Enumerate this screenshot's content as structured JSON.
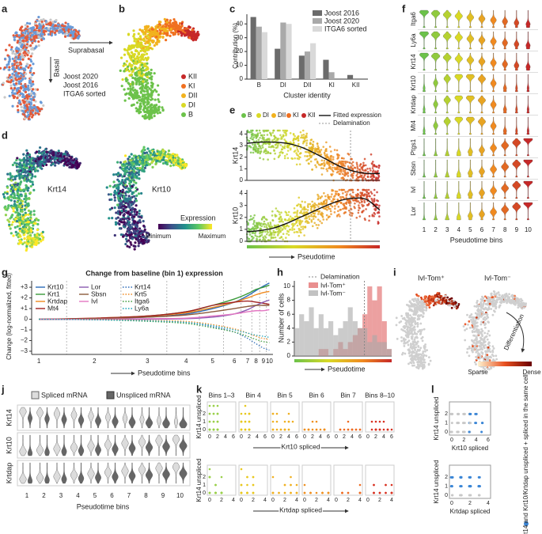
{
  "figure": {
    "panel_letters": [
      "a",
      "b",
      "c",
      "d",
      "e",
      "f",
      "g",
      "h",
      "i",
      "j",
      "k",
      "l"
    ],
    "panel_a": {
      "arrow_labels": [
        "Suprabasal",
        "Basal"
      ],
      "legend": [
        {
          "name": "Joost 2020",
          "color": "#6a9bd8"
        },
        {
          "name": "Joost 2016",
          "color": "#e35b3a"
        },
        {
          "name": "ITGA6 sorted",
          "color": "#c8c8c8"
        }
      ]
    },
    "panel_b": {
      "legend": [
        {
          "name": "KII",
          "color": "#c62828"
        },
        {
          "name": "KI",
          "color": "#f07020"
        },
        {
          "name": "DII",
          "color": "#f2b21e"
        },
        {
          "name": "DI",
          "color": "#d9d925"
        },
        {
          "name": "B",
          "color": "#6cc24a"
        }
      ]
    },
    "panel_d": {
      "labels": [
        "Krt14",
        "Krt10"
      ],
      "colorbar_title": "Expression",
      "colorbar_ends": [
        "Minimum",
        "Maximum"
      ]
    },
    "panel_e": {
      "legend": [
        {
          "name": "B",
          "color": "#6cc24a"
        },
        {
          "name": "DI",
          "color": "#d9d925"
        },
        {
          "name": "DII",
          "color": "#f2b21e"
        },
        {
          "name": "KI",
          "color": "#f07020"
        },
        {
          "name": "KII",
          "color": "#c62828"
        }
      ],
      "fit_label": "Fitted expression",
      "delamination_label": "Delamination",
      "xlabel": "Pseudotime"
    },
    "panel_f": {
      "genes": [
        "Itga6",
        "Ly6a",
        "Krt14",
        "Krt10",
        "Krtdap",
        "Mt4",
        "Ptgs1",
        "Sbsn",
        "Ivl",
        "Lor"
      ],
      "bins": [
        1,
        2,
        3,
        4,
        5,
        6,
        7,
        8,
        9,
        10
      ],
      "xlabel": "Pseudotime bins"
    },
    "panel_i": {
      "titles": [
        "Ivl-Tom⁺",
        "Ivl-Tom⁻"
      ],
      "arrow_label": "Differentiation",
      "colorbar_ends": [
        "Sparse",
        "Dense"
      ]
    },
    "panel_j": {
      "legend": [
        "Spliced mRNA",
        "Unspliced mRNA"
      ],
      "genes": [
        "Krt14",
        "Krt10",
        "Krtdap"
      ],
      "bins": [
        1,
        2,
        3,
        4,
        5,
        6,
        7,
        8,
        9,
        10
      ],
      "xlabel": "Pseudotime bins"
    },
    "panel_k": {
      "headers": [
        "Bins 1–3",
        "Bin 4",
        "Bin 5",
        "Bin 6",
        "Bin 7",
        "Bins 8–10"
      ],
      "ylabels": [
        "Krt14 unspliced",
        "Krt14 unspliced"
      ],
      "xlabels": [
        "Krt10 spliced",
        "Krtdap spliced"
      ],
      "yticks": [
        0,
        1,
        2
      ],
      "xticks_top": [
        0,
        2,
        4,
        6
      ],
      "xticks_bottom": [
        0,
        2,
        4
      ]
    },
    "panel_l": {
      "ylabels": [
        "Krt14 unspliced",
        "Krt14 unspliced"
      ],
      "xlabels": [
        "Krt10 spliced",
        "Krtdap spliced"
      ],
      "yticks": [
        0,
        1,
        2
      ],
      "xticks_top": [
        0,
        2,
        4,
        6
      ],
      "xticks_bottom": [
        0,
        2,
        4
      ],
      "note": "Krt14 and Krt10/Krtdap unspliced + spliced in the same cell"
    }
  },
  "chart_data": [
    {
      "type": "bar",
      "barmode": "grouped",
      "ylabel": "Contribution (%)",
      "xlabel": "Cluster identity",
      "categories": [
        "B",
        "DI",
        "DII",
        "KI",
        "KII"
      ],
      "series": [
        {
          "name": "Joost 2016",
          "color": "#6b6b6b",
          "values": [
            45,
            22,
            17,
            14,
            3
          ]
        },
        {
          "name": "Joost 2020",
          "color": "#a9a9a9",
          "values": [
            38,
            41,
            20,
            5,
            0
          ]
        },
        {
          "name": "ITGA6 sorted",
          "color": "#d9d9d9",
          "values": [
            34,
            40,
            26,
            0,
            0
          ]
        }
      ],
      "ylim": [
        0,
        47
      ],
      "yticks": [
        0,
        10,
        20,
        30,
        40
      ]
    },
    {
      "type": "line",
      "ylabel": "Krt14",
      "categories": [
        null,
        null,
        null,
        null,
        null,
        null,
        null,
        null,
        null,
        null,
        null
      ],
      "values": [
        3.2,
        3.3,
        3.3,
        3.2,
        2.9,
        2.4,
        1.8,
        1.2,
        0.8,
        0.6,
        0.6
      ],
      "color": "#111111",
      "ylim": [
        0,
        4.3
      ],
      "yticks": [
        0,
        1,
        2,
        3,
        4
      ]
    },
    {
      "type": "line",
      "ylabel": "Krt10",
      "categories": [
        null,
        null,
        null,
        null,
        null,
        null,
        null,
        null,
        null,
        null,
        null
      ],
      "values": [
        0.8,
        0.9,
        1.1,
        1.5,
        2.0,
        2.5,
        3.0,
        3.4,
        3.6,
        3.5,
        2.6
      ],
      "color": "#111111",
      "ylim": [
        0,
        4.3
      ],
      "yticks": [
        0,
        1,
        2,
        3,
        4
      ]
    },
    {
      "type": "line",
      "title": "Change from baseline (bin 1) expression",
      "ylabel": "Change (log-normalized, fitted)",
      "xlabel": "Pseudotime bins",
      "categories": [
        "1",
        "2",
        "3",
        "4",
        "5",
        "6",
        "7",
        "8",
        "9",
        "10"
      ],
      "series": [
        {
          "name": "Krt10",
          "color": "#2b6cb8",
          "style": "solid",
          "values": [
            0,
            0.05,
            0.2,
            0.5,
            1.0,
            1.6,
            2.2,
            2.7,
            3.1,
            3.4
          ]
        },
        {
          "name": "Krt1",
          "color": "#3a9a3a",
          "style": "solid",
          "values": [
            0,
            0.05,
            0.3,
            0.7,
            1.3,
            1.9,
            2.4,
            2.8,
            3.0,
            3.2
          ]
        },
        {
          "name": "Krtdap",
          "color": "#f08a20",
          "style": "solid",
          "values": [
            0,
            0.1,
            0.3,
            0.6,
            1.1,
            1.6,
            2.0,
            2.3,
            2.5,
            2.6
          ]
        },
        {
          "name": "Mt4",
          "color": "#a02020",
          "style": "solid",
          "values": [
            0,
            0.1,
            0.3,
            0.7,
            1.3,
            1.6,
            1.7,
            1.6,
            1.5,
            1.4
          ]
        },
        {
          "name": "Lor",
          "color": "#8a5bb0",
          "style": "solid",
          "values": [
            0,
            0,
            0,
            0.05,
            0.2,
            0.5,
            0.9,
            1.3,
            1.6,
            1.8
          ]
        },
        {
          "name": "Sbsn",
          "color": "#8c5a3c",
          "style": "solid",
          "values": [
            0,
            0.05,
            0.2,
            0.4,
            0.7,
            1.0,
            1.2,
            1.3,
            1.3,
            1.3
          ]
        },
        {
          "name": "Ivl",
          "color": "#e377c2",
          "style": "solid",
          "values": [
            0,
            0,
            0.05,
            0.1,
            0.3,
            0.5,
            0.7,
            0.8,
            0.8,
            0.9
          ]
        },
        {
          "name": "Krt14",
          "color": "#2b6cb8",
          "style": "dotted",
          "values": [
            0,
            0,
            -0.1,
            -0.3,
            -0.7,
            -1.2,
            -1.8,
            -2.3,
            -2.7,
            -2.9
          ]
        },
        {
          "name": "Krt5",
          "color": "#f08a20",
          "style": "dotted",
          "values": [
            0,
            0,
            -0.1,
            -0.2,
            -0.5,
            -0.9,
            -1.3,
            -1.6,
            -1.8,
            -1.9
          ]
        },
        {
          "name": "Itga6",
          "color": "#3a9a3a",
          "style": "dotted",
          "values": [
            0,
            -0.05,
            -0.2,
            -0.4,
            -0.8,
            -1.2,
            -1.6,
            -1.9,
            -2.1,
            -2.2
          ]
        },
        {
          "name": "Ly6a",
          "color": "#17a2b8",
          "style": "dotted",
          "values": [
            0,
            -0.05,
            -0.15,
            -0.3,
            -0.6,
            -1.0,
            -1.3,
            -1.5,
            -1.6,
            -1.7
          ]
        }
      ],
      "ylim": [
        -3.3,
        3.6
      ],
      "yticks": [
        {
          "value": 3,
          "label": "+3"
        },
        {
          "value": 2,
          "label": "+2"
        },
        {
          "value": 1,
          "label": "+1"
        },
        0,
        {
          "value": -1,
          "label": "−1"
        },
        {
          "value": -2,
          "label": "−2"
        },
        {
          "value": -3,
          "label": "−3"
        }
      ]
    },
    {
      "type": "bar",
      "barmode": "overlay",
      "ylabel": "Number of cells",
      "xlabel": "Pseudotime",
      "reference_line": "Delamination",
      "categories": [
        null,
        null,
        null,
        null,
        null,
        null,
        null,
        null,
        null,
        null,
        null,
        null,
        null,
        null,
        null,
        null,
        null,
        null,
        null,
        null
      ],
      "series": [
        {
          "name": "Ivl-Tom⁺",
          "color": "#e06060",
          "values": [
            0,
            0,
            0,
            0,
            0,
            1,
            1,
            0,
            1,
            2,
            1,
            2,
            3,
            4,
            6,
            10,
            8,
            10,
            5,
            1
          ]
        },
        {
          "name": "Ivl-Tom⁻",
          "color": "#a8a8a8",
          "values": [
            4,
            6,
            5,
            7,
            4,
            6,
            4,
            5,
            3,
            4,
            5,
            7,
            5,
            4,
            4,
            2,
            3,
            2,
            2,
            1
          ]
        }
      ],
      "ylim": [
        0,
        10.8
      ],
      "yticks": [
        0,
        2,
        4,
        6,
        8,
        10
      ]
    }
  ]
}
